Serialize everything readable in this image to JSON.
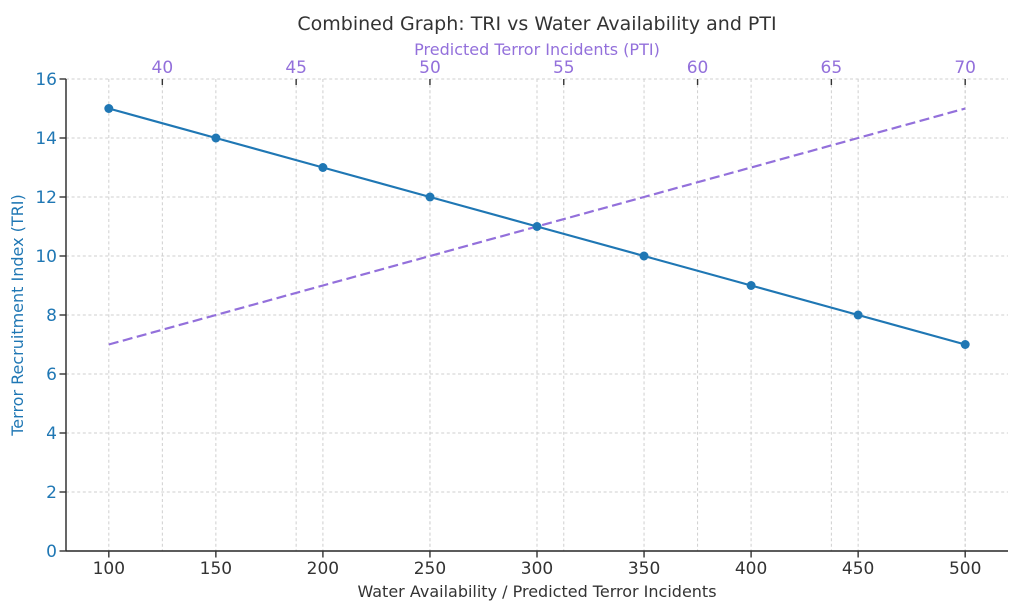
{
  "colors": {
    "tri_blue": "#1f77b4",
    "pti_purple": "#9370db",
    "text_dark": "#333333",
    "grid": "#cfcfcf",
    "spine": "#262626",
    "tick_mark": "#333333",
    "background": "#ffffff"
  },
  "chart_data": {
    "type": "line",
    "title": "Combined Graph: TRI vs Water Availability and PTI",
    "xlabel": "Water Availability / Predicted Terror Incidents",
    "top_xlabel": "Predicted Terror Incidents (PTI)",
    "ylabel": "Terror Recruitment Index (TRI)",
    "grid": true,
    "legend": false,
    "axes": {
      "bottom": {
        "ticks": [
          100,
          150,
          200,
          250,
          300,
          350,
          400,
          450,
          500
        ],
        "lim": [
          80,
          520
        ],
        "label_color": "#333333"
      },
      "top": {
        "ticks": [
          40,
          45,
          50,
          55,
          60,
          65,
          70
        ],
        "lim": [
          36.4,
          71.6
        ],
        "label_color": "#9370db"
      },
      "left": {
        "ticks": [
          0,
          2,
          4,
          6,
          8,
          10,
          12,
          14,
          16
        ],
        "lim": [
          0,
          16
        ],
        "label_color": "#1f77b4"
      }
    },
    "series": [
      {
        "name": "Terror Recruitment Index (TRI) vs Water Availability",
        "x_axis": "bottom",
        "line_style": "solid",
        "marker": "circle",
        "color": "#1f77b4",
        "x": [
          100,
          150,
          200,
          250,
          300,
          350,
          400,
          450,
          500
        ],
        "y": [
          15,
          14,
          13,
          12,
          11,
          10,
          9,
          8,
          7
        ]
      },
      {
        "name": "Predicted Terror Incidents (PTI)",
        "x_axis": "top",
        "line_style": "dashed",
        "marker": "none",
        "color": "#9370db",
        "x": [
          38,
          42,
          46,
          50,
          54,
          58,
          62,
          66,
          70
        ],
        "y": [
          7,
          8,
          9,
          10,
          11,
          12,
          13,
          14,
          15
        ]
      }
    ]
  }
}
